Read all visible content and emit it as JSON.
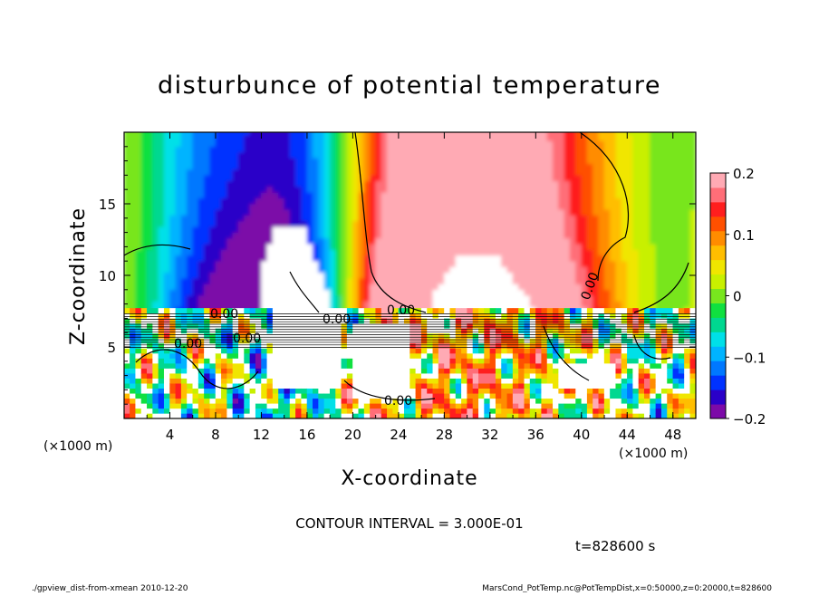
{
  "chart_data": {
    "type": "heatmap",
    "title": "disturbunce of potential temperature",
    "xlabel": "X-coordinate",
    "ylabel": "Z-coordinate",
    "x_unit": "(×1000 m)",
    "y_unit": "(×1000 m)",
    "xlim": [
      0,
      50
    ],
    "ylim": [
      0,
      20
    ],
    "x_ticks": [
      4,
      8,
      12,
      16,
      20,
      24,
      28,
      32,
      36,
      40,
      44,
      48
    ],
    "y_ticks": [
      5,
      10,
      15
    ],
    "colorbar": {
      "min": -0.2,
      "max": 0.2,
      "ticks": [
        0.2,
        0.1,
        0,
        -0.1,
        -0.2
      ],
      "tick_labels": [
        "0.2",
        "0.1",
        "0",
        "−0.1",
        "−0.2"
      ],
      "colors": [
        "#7c0aa8",
        "#2a00c8",
        "#0032ff",
        "#0078ff",
        "#00b4ff",
        "#00e0e8",
        "#00d890",
        "#10e040",
        "#78e61e",
        "#c8f000",
        "#f0e600",
        "#ffbe00",
        "#ff8c00",
        "#ff5000",
        "#ff1e1e",
        "#ff6e78",
        "#ffaab4"
      ]
    },
    "contour_labels": [
      "0.00",
      "0.00",
      "0.00",
      "0.00",
      "0.00",
      "0.00",
      "0.00"
    ],
    "contour_interval": "CONTOUR INTERVAL = 3.000E-01",
    "time": "t=828600 s",
    "footer_left": "./gpview_dist-from-xmean  2010-12-20",
    "footer_right": "MarsCond_PotTemp.nc@PotTempDist,x=0:50000,z=0:20000,t=828600"
  }
}
